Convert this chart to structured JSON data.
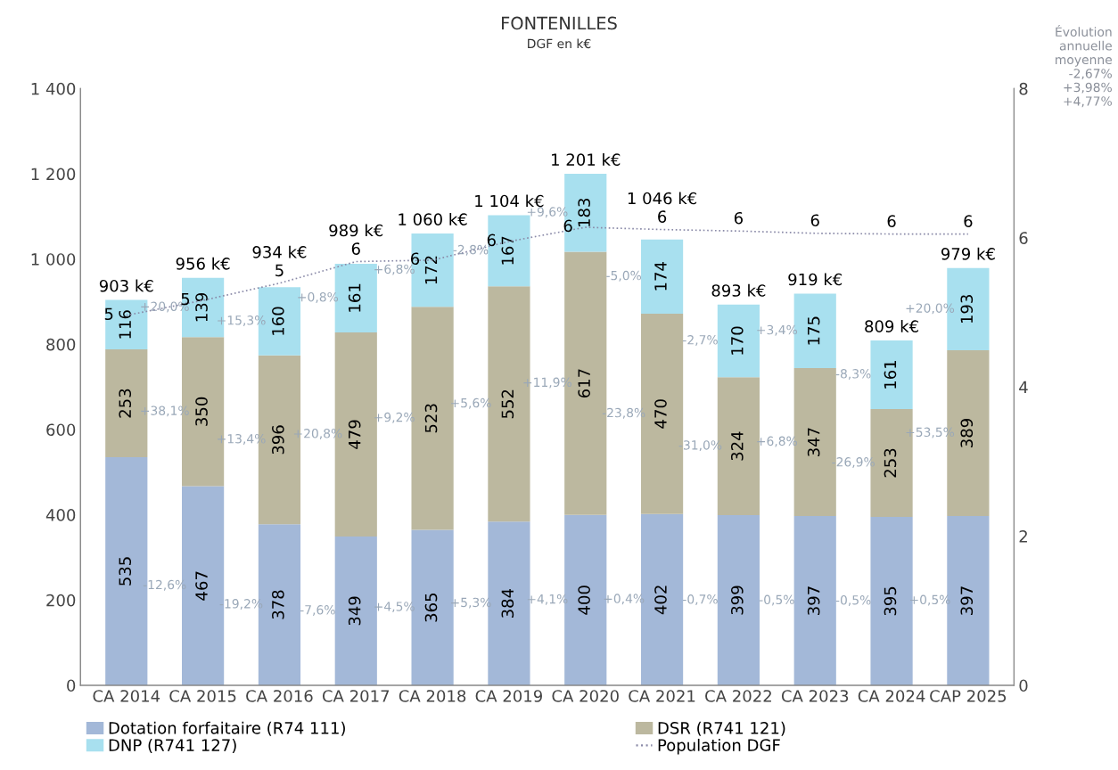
{
  "chart_data": {
    "type": "bar",
    "title": "FONTENILLES",
    "subtitle": "DGF en k€",
    "categories": [
      "CA 2014",
      "CA 2015",
      "CA 2016",
      "CA 2017",
      "CA 2018",
      "CA 2019",
      "CA 2020",
      "CA 2021",
      "CA 2022",
      "CA 2023",
      "CA 2024",
      "CAP 2025"
    ],
    "stacked": true,
    "data_labels": true,
    "series": [
      {
        "name": "Dotation forfaitaire (R74 111)",
        "color": "#a3b8d8",
        "values": [
          535,
          467,
          378,
          349,
          365,
          384,
          400,
          402,
          399,
          397,
          395,
          397
        ]
      },
      {
        "name": "DSR (R741 121)",
        "color": "#bcb89f",
        "values": [
          253,
          350,
          396,
          479,
          523,
          552,
          617,
          470,
          324,
          347,
          253,
          389
        ]
      },
      {
        "name": "DNP (R741 127)",
        "color": "#a8e0ef",
        "values": [
          116,
          139,
          160,
          161,
          172,
          167,
          183,
          174,
          170,
          175,
          161,
          193
        ]
      },
      {
        "name": "Population DGF",
        "type": "line",
        "axis": "y2",
        "color": "#8a8aa8",
        "line_style": "dotted",
        "values": [
          4.96,
          5.16,
          5.39,
          5.68,
          5.7,
          5.95,
          6.14,
          6.11,
          6.09,
          6.06,
          6.05,
          6.05
        ],
        "value_labels": [
          "5",
          "5",
          "5",
          "6",
          "6",
          "6",
          "6",
          "6",
          "6",
          "6",
          "6",
          "6"
        ]
      }
    ],
    "totals": [
      "903 k€",
      "956 k€",
      "934 k€",
      "989 k€",
      "1 060 k€",
      "1 104 k€",
      "1 201 k€",
      "1 046 k€",
      "893 k€",
      "919 k€",
      "809 k€",
      "979 k€"
    ],
    "ylim": [
      0,
      1400
    ],
    "yticks": [
      0,
      200,
      400,
      600,
      800,
      {
        "value": 1000,
        "label": "1 000"
      },
      {
        "value": 1200,
        "label": "1 200"
      },
      {
        "value": 1400,
        "label": "1 400"
      }
    ],
    "y2lim": [
      0,
      8
    ],
    "y2ticks": [
      0,
      2,
      4,
      6,
      8
    ],
    "grid": false,
    "legend": "bottom",
    "annotations": [
      "Évolution\nannuelle\nmoyenne\n-2,67%\n+3,98%\n+4,77%",
      "-12,6%",
      "-19,2%",
      "-7,6%",
      "+4,5%",
      "+5,3%",
      "+4,1%",
      "+0,4%",
      "-0,7%",
      "-0,5%",
      "-0,5%",
      "+0,5%",
      "+38,1%",
      "+13,4%",
      "+20,8%",
      "+9,2%",
      "+5,6%",
      "+11,9%",
      "-23,8%",
      "-31,0%",
      "+6,8%",
      "-26,9%",
      "+53,5%",
      "+20,0%",
      "+15,3%",
      "+0,8%",
      "+6,8%",
      "-2,8%",
      "+9,6%",
      "-5,0%",
      "-2,7%",
      "+3,4%",
      "-8,3%",
      "+20,0%"
    ]
  }
}
